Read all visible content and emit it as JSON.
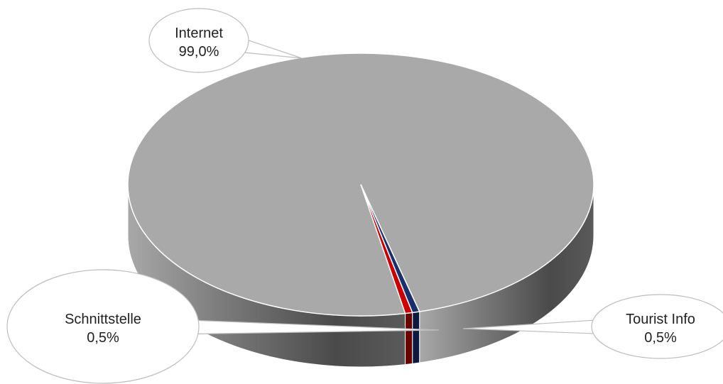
{
  "chart_data": {
    "type": "pie",
    "three_d": true,
    "slices": [
      {
        "label": "Internet",
        "value": 99.0,
        "value_text": "99,0%",
        "color": "#a9a9a9",
        "side_color": "#6e6e6e"
      },
      {
        "label": "Tourist Info",
        "value": 0.5,
        "value_text": "0,5%",
        "color": "#cc0000",
        "side_color": "#6b0000"
      },
      {
        "label": "Schnittstelle",
        "value": 0.5,
        "value_text": "0,5%",
        "color": "#1a2f6e",
        "side_color": "#0d1a40"
      }
    ],
    "callout_style": "speech-bubble ellipses",
    "legend": "none"
  }
}
